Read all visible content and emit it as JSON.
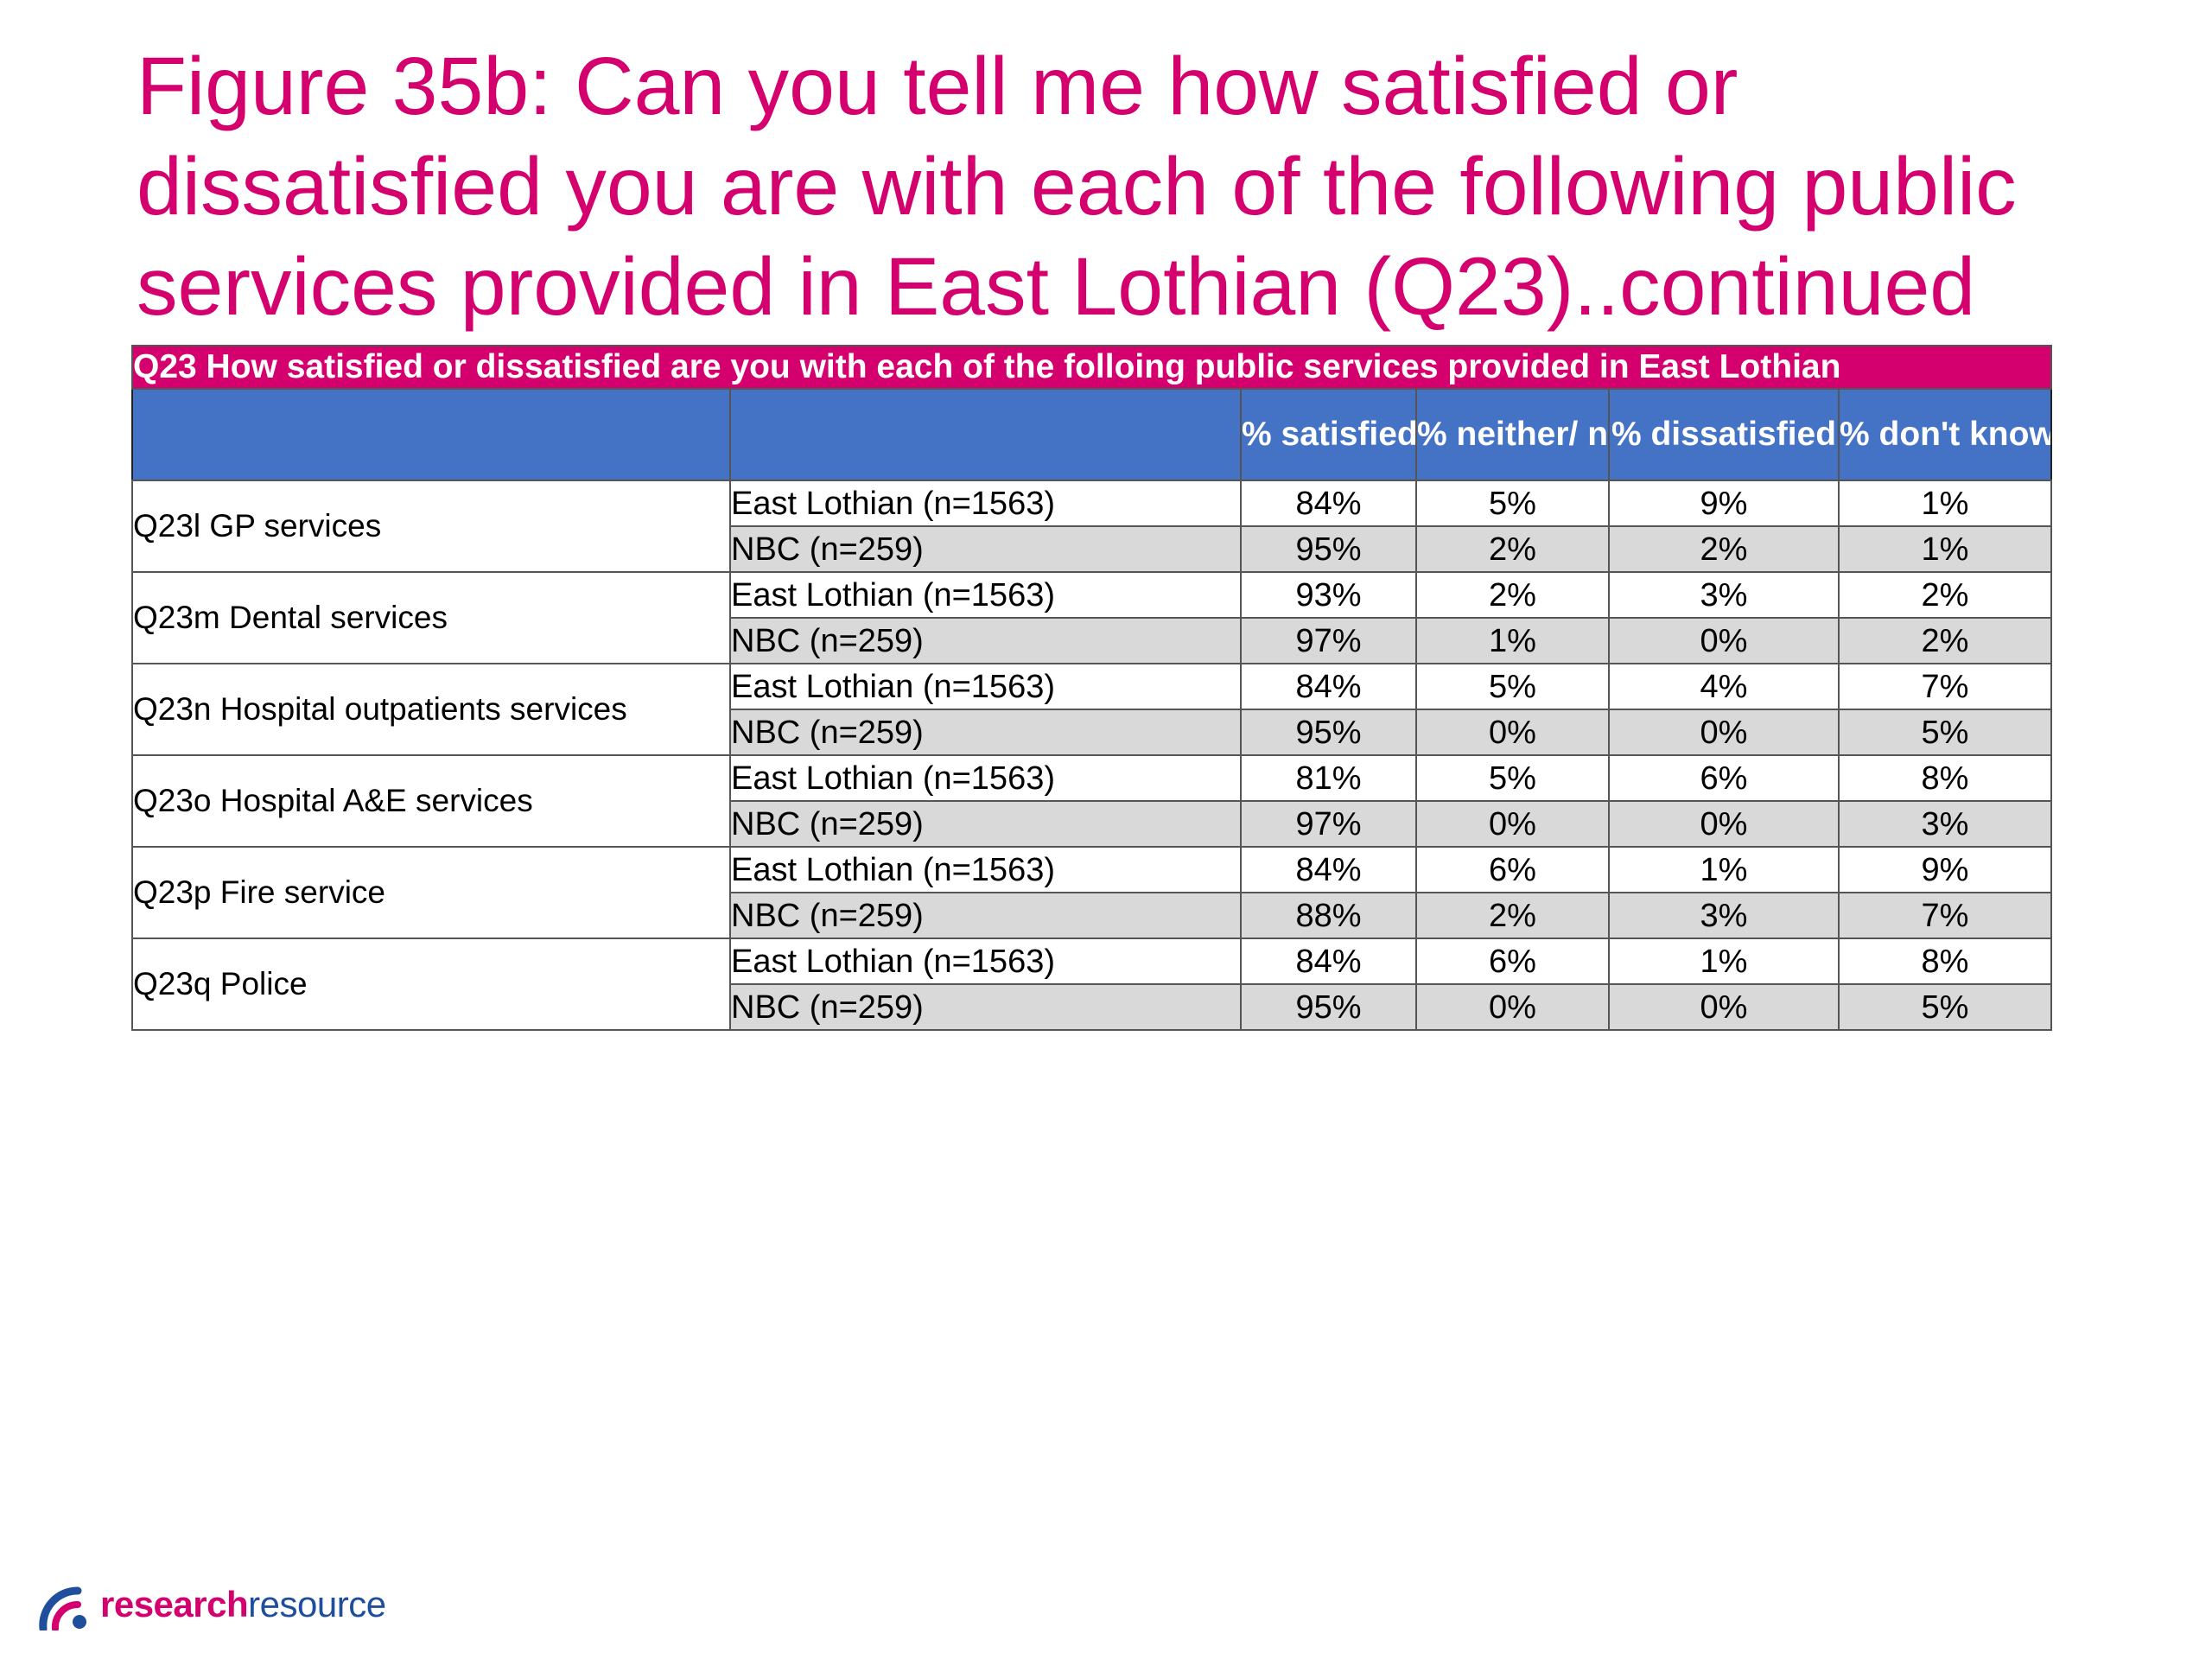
{
  "title": "Figure 35b: Can you tell me how satisfied or dissatisfied you are with each of the following public services provided in East Lothian (Q23)..continued",
  "table": {
    "caption": "Q23 How satisfied or dissatisfied are you with each of the folloing public services provided in East Lothian",
    "columns": [
      "% satisfied",
      "% neither/ nor",
      "% dissatisfied",
      "% don't know"
    ],
    "rows": [
      {
        "service": "Q23l GP services",
        "el": {
          "label": "East Lothian (n=1563)",
          "values": [
            "84%",
            "5%",
            "9%",
            "1%"
          ]
        },
        "nbc": {
          "label": "NBC (n=259)",
          "values": [
            "95%",
            "2%",
            "2%",
            "1%"
          ]
        }
      },
      {
        "service": "Q23m Dental services",
        "el": {
          "label": "East Lothian (n=1563)",
          "values": [
            "93%",
            "2%",
            "3%",
            "2%"
          ]
        },
        "nbc": {
          "label": "NBC (n=259)",
          "values": [
            "97%",
            "1%",
            "0%",
            "2%"
          ]
        }
      },
      {
        "service": "Q23n Hospital outpatients services",
        "el": {
          "label": "East Lothian (n=1563)",
          "values": [
            "84%",
            "5%",
            "4%",
            "7%"
          ]
        },
        "nbc": {
          "label": "NBC (n=259)",
          "values": [
            "95%",
            "0%",
            "0%",
            "5%"
          ]
        }
      },
      {
        "service": "Q23o Hospital A&E services",
        "el": {
          "label": "East Lothian (n=1563)",
          "values": [
            "81%",
            "5%",
            "6%",
            "8%"
          ]
        },
        "nbc": {
          "label": "NBC (n=259)",
          "values": [
            "97%",
            "0%",
            "0%",
            "3%"
          ]
        }
      },
      {
        "service": "Q23p Fire service",
        "el": {
          "label": "East Lothian (n=1563)",
          "values": [
            "84%",
            "6%",
            "1%",
            "9%"
          ]
        },
        "nbc": {
          "label": "NBC (n=259)",
          "values": [
            "88%",
            "2%",
            "3%",
            "7%"
          ]
        }
      },
      {
        "service": "Q23q Police",
        "el": {
          "label": "East Lothian (n=1563)",
          "values": [
            "84%",
            "6%",
            "1%",
            "8%"
          ]
        },
        "nbc": {
          "label": "NBC (n=259)",
          "values": [
            "95%",
            "0%",
            "0%",
            "5%"
          ]
        }
      }
    ]
  },
  "logo": {
    "part1": "research",
    "part2": "resource",
    "icon": "research-resource-logo-icon"
  },
  "colors": {
    "accent": "#d4006e",
    "header_blue": "#4472c4",
    "row_shade": "#d9d9d9",
    "logo_blue": "#1f4e9c"
  }
}
